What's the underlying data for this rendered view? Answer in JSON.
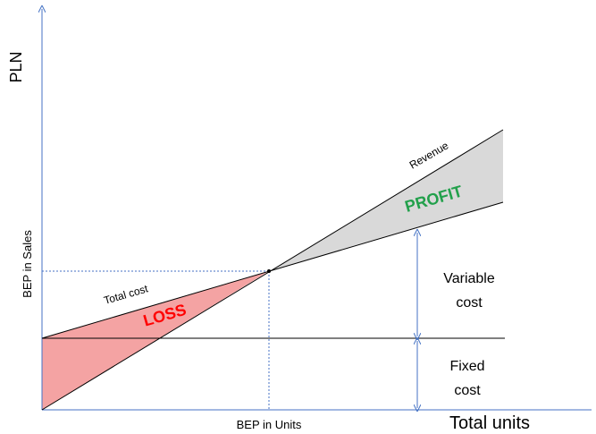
{
  "y_axis_label": "PLN",
  "x_axis_label": "Total units",
  "bep_sales": "BEP in Sales",
  "bep_units": "BEP in Units",
  "lines": {
    "total_cost": "Total cost",
    "revenue": "Revenue"
  },
  "regions": {
    "loss": "LOSS",
    "profit": "PROFIT"
  },
  "variable_cost": [
    "Variable",
    "cost"
  ],
  "fixed_cost": [
    "Fixed",
    "cost"
  ]
}
